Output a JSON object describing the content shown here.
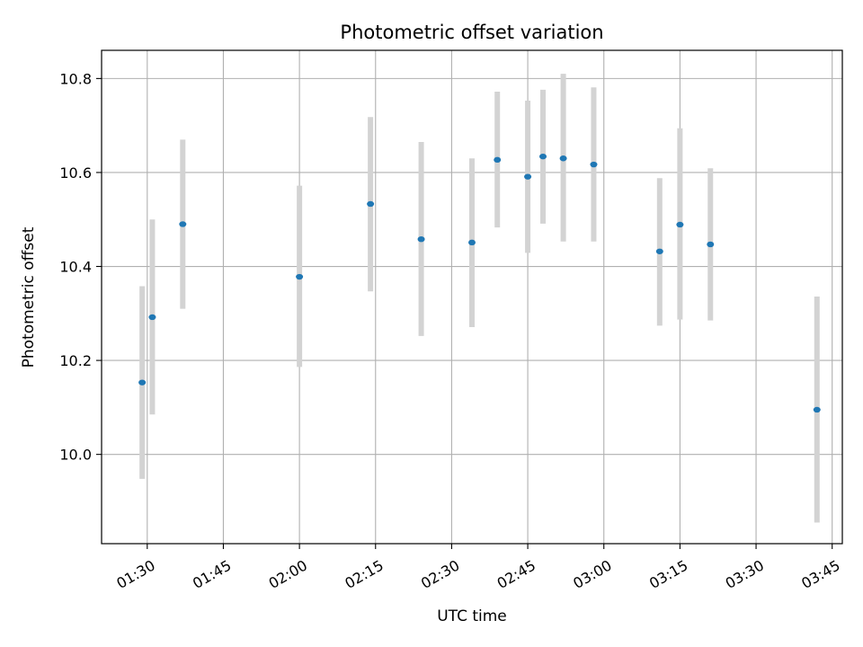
{
  "chart_data": {
    "type": "scatter",
    "title": "Photometric offset variation",
    "xlabel": "UTC time",
    "ylabel": "Photometric offset",
    "x_axis": {
      "kind": "time",
      "ticks": [
        "01:30",
        "01:45",
        "02:00",
        "02:15",
        "02:30",
        "02:45",
        "03:00",
        "03:15",
        "03:30",
        "03:45"
      ],
      "range": [
        "01:21",
        "03:47"
      ]
    },
    "y_axis": {
      "ticks": [
        "10.0",
        "10.2",
        "10.4",
        "10.6",
        "10.8"
      ],
      "range": [
        9.81,
        10.86
      ]
    },
    "grid": true,
    "series": [
      {
        "marker_color": "#1f77b4",
        "errorbar_color": "#d3d3d3",
        "points": [
          {
            "t": "01:29",
            "y": 10.153,
            "lo": 9.948,
            "hi": 10.358
          },
          {
            "t": "01:31",
            "y": 10.292,
            "lo": 10.085,
            "hi": 10.5
          },
          {
            "t": "01:37",
            "y": 10.49,
            "lo": 10.31,
            "hi": 10.67
          },
          {
            "t": "02:00",
            "y": 10.378,
            "lo": 10.186,
            "hi": 10.572
          },
          {
            "t": "02:14",
            "y": 10.533,
            "lo": 10.347,
            "hi": 10.718
          },
          {
            "t": "02:24",
            "y": 10.458,
            "lo": 10.252,
            "hi": 10.665
          },
          {
            "t": "02:34",
            "y": 10.451,
            "lo": 10.271,
            "hi": 10.63
          },
          {
            "t": "02:39",
            "y": 10.627,
            "lo": 10.483,
            "hi": 10.772
          },
          {
            "t": "02:45",
            "y": 10.591,
            "lo": 10.429,
            "hi": 10.753
          },
          {
            "t": "02:48",
            "y": 10.634,
            "lo": 10.491,
            "hi": 10.776
          },
          {
            "t": "02:52",
            "y": 10.63,
            "lo": 10.453,
            "hi": 10.81
          },
          {
            "t": "02:58",
            "y": 10.617,
            "lo": 10.453,
            "hi": 10.781
          },
          {
            "t": "03:11",
            "y": 10.432,
            "lo": 10.274,
            "hi": 10.588
          },
          {
            "t": "03:15",
            "y": 10.489,
            "lo": 10.287,
            "hi": 10.694
          },
          {
            "t": "03:21",
            "y": 10.447,
            "lo": 10.285,
            "hi": 10.609
          },
          {
            "t": "03:42",
            "y": 10.095,
            "lo": 9.855,
            "hi": 10.336
          }
        ]
      }
    ]
  }
}
